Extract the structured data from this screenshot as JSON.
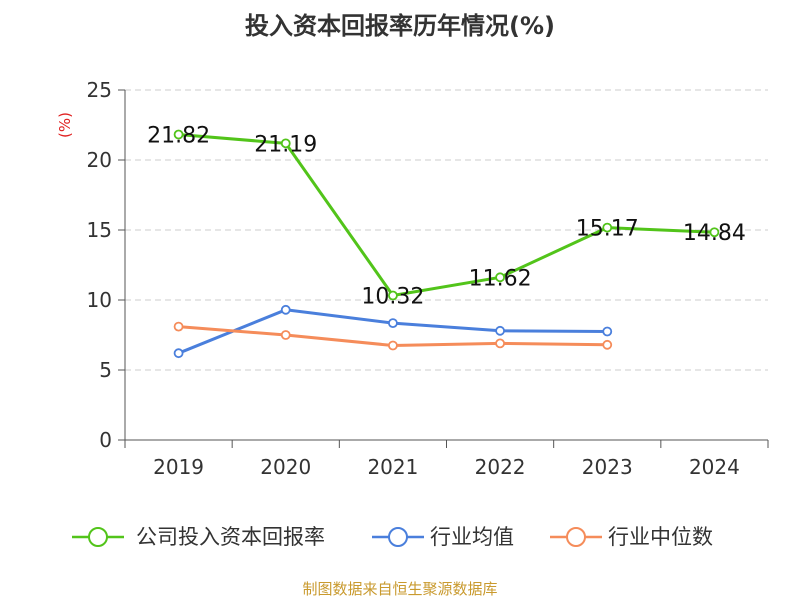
{
  "chart_data": {
    "type": "line",
    "title": "投入资本回报率历年情况(%)",
    "ylabel": "(%)",
    "ylim": [
      0,
      25
    ],
    "yticks": [
      0,
      5,
      10,
      15,
      20,
      25
    ],
    "grid": true,
    "legend_position": "bottom",
    "categories": [
      "2019",
      "2020",
      "2021",
      "2022",
      "2023",
      "2024"
    ],
    "series": [
      {
        "name": "公司投入资本回报率",
        "color": "#52c41a",
        "values": [
          21.82,
          21.19,
          10.32,
          11.62,
          15.17,
          14.84
        ],
        "labels": [
          "21.82",
          "21.19",
          "10.32",
          "11.62",
          "15.17",
          "14.84"
        ]
      },
      {
        "name": "行业均值",
        "color": "#4a7fdc",
        "values": [
          6.2,
          9.3,
          8.35,
          7.8,
          7.75,
          null
        ]
      },
      {
        "name": "行业中位数",
        "color": "#f58c5a",
        "values": [
          8.1,
          7.5,
          6.75,
          6.9,
          6.8,
          null
        ]
      }
    ]
  },
  "footer": {
    "source": "制图数据来自恒生聚源数据库"
  }
}
